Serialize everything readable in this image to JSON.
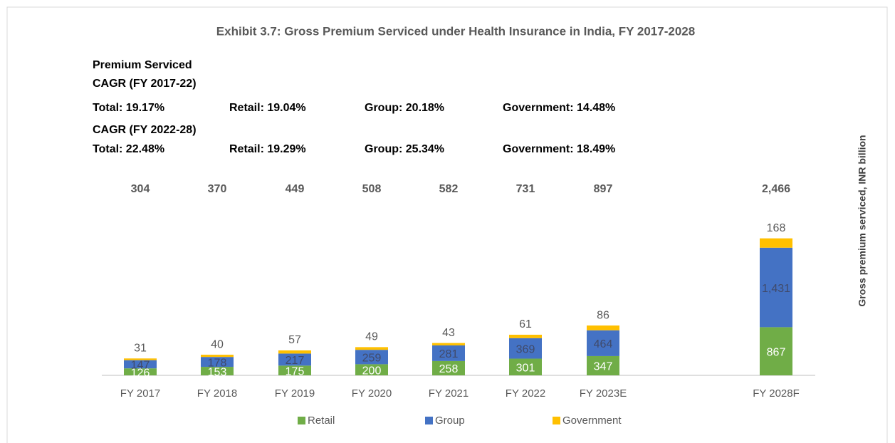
{
  "chart_data": {
    "type": "stacked_bar",
    "title": "Exhibit 3.7: Gross Premium Serviced under Health Insurance in India, FY 2017-2028",
    "heading": "Premium Serviced",
    "cagr": [
      {
        "label": "CAGR (FY 2017-22)",
        "items": [
          "Total: 19.17%",
          "Retail: 19.04%",
          "Group: 20.18%",
          "Government: 14.48%"
        ]
      },
      {
        "label": "CAGR (FY 2022-28)",
        "items": [
          "Total: 22.48%",
          "Retail: 19.29%",
          "Group: 25.34%",
          "Government: 18.49%"
        ]
      }
    ],
    "y_axis_label": "Gross premium serviced, INR billion",
    "categories": [
      "FY 2017",
      "FY 2018",
      "FY 2019",
      "FY 2020",
      "FY 2021",
      "FY 2022",
      "FY 2023E",
      "FY 2028F"
    ],
    "series": [
      {
        "name": "Retail",
        "color": "#70ad47",
        "values": [
          126,
          153,
          175,
          200,
          258,
          301,
          347,
          867
        ]
      },
      {
        "name": "Group",
        "color": "#4472c4",
        "values": [
          147,
          178,
          217,
          259,
          281,
          369,
          464,
          1431
        ],
        "value_labels": [
          "147",
          "178",
          "217",
          "259",
          "281",
          "369",
          "464",
          "1,431"
        ]
      },
      {
        "name": "Government",
        "color": "#ffc000",
        "values": [
          31,
          40,
          57,
          49,
          43,
          61,
          86,
          168
        ]
      }
    ],
    "totals": {
      "values": [
        304,
        370,
        449,
        508,
        582,
        731,
        897,
        2466
      ],
      "value_labels": [
        "304",
        "370",
        "449",
        "508",
        "582",
        "731",
        "897",
        "2,466"
      ]
    },
    "ylim": [
      0,
      2500
    ],
    "legend": "bottom"
  }
}
